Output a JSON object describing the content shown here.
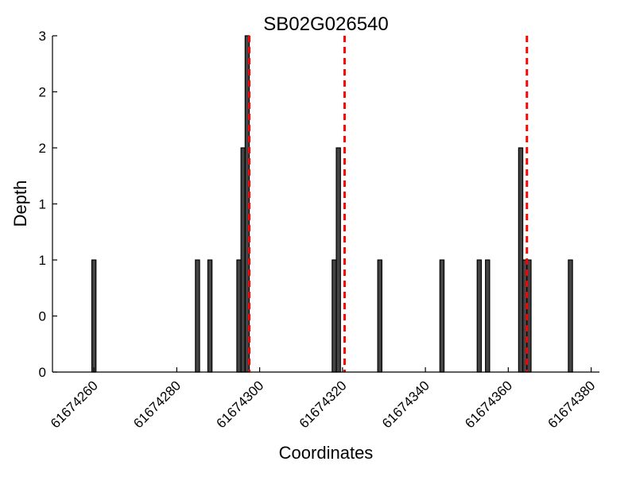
{
  "chart_data": {
    "type": "bar",
    "title": "SB02G026540",
    "xlabel": "Coordinates",
    "ylabel": "Depth",
    "xlim": [
      61674250,
      61674382
    ],
    "ylim": [
      0,
      3
    ],
    "x_ticks": [
      61674260,
      61674280,
      61674300,
      61674320,
      61674340,
      61674360,
      61674380
    ],
    "x_tick_labels": [
      "61674260",
      "61674280",
      "61674300",
      "61674320",
      "61674340",
      "61674360",
      "61674380"
    ],
    "y_ticks": [
      0,
      0.5,
      1,
      1.5,
      2,
      2.5,
      3
    ],
    "y_tick_labels": [
      "0",
      "0",
      "1",
      "1",
      "2",
      "2",
      "3"
    ],
    "bar_width": 1,
    "x": [
      61674260,
      61674285,
      61674288,
      61674295,
      61674296,
      61674297,
      61674318,
      61674319,
      61674329,
      61674344,
      61674353,
      61674355,
      61674363,
      61674364,
      61674365,
      61674375
    ],
    "values": [
      1,
      1,
      1,
      1,
      2,
      3,
      1,
      2,
      1,
      1,
      1,
      1,
      2,
      1,
      1,
      1
    ],
    "markers": [
      61674297.5,
      61674320.5,
      61674364.5
    ],
    "marker_color": "#ff0000",
    "bar_color": "#444444",
    "grid": false,
    "legend": "none"
  }
}
